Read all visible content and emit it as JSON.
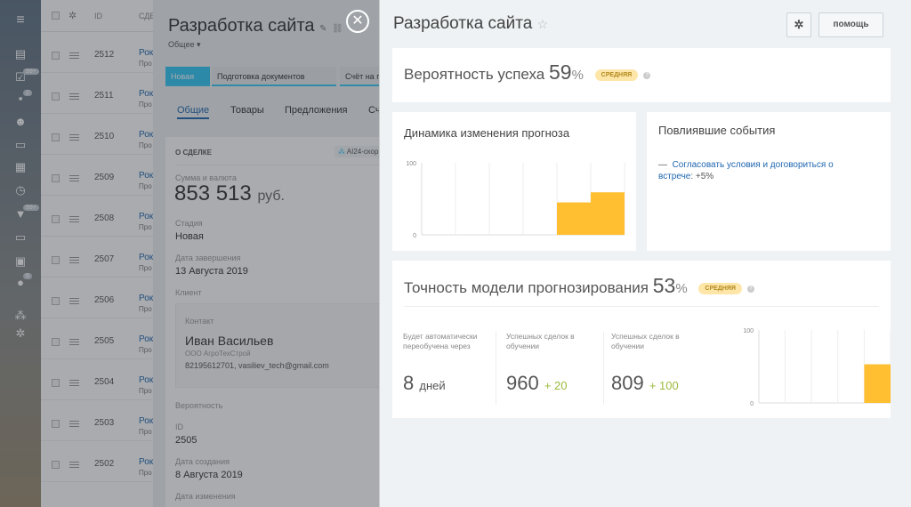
{
  "sidebar": {
    "badges": [
      "99+",
      "2",
      "99+",
      "6"
    ]
  },
  "list": {
    "header": {
      "id": "ID",
      "deal": "СДЕ"
    },
    "rows": [
      {
        "id": "2512",
        "name": "Рок",
        "sub": "Про"
      },
      {
        "id": "2511",
        "name": "Рок",
        "sub": "Про"
      },
      {
        "id": "2510",
        "name": "Рок",
        "sub": "Про"
      },
      {
        "id": "2509",
        "name": "Рок",
        "sub": "Про"
      },
      {
        "id": "2508",
        "name": "Рок",
        "sub": "Про"
      },
      {
        "id": "2507",
        "name": "Рок",
        "sub": "Про"
      },
      {
        "id": "2506",
        "name": "Рок",
        "sub": "Про"
      },
      {
        "id": "2505",
        "name": "Рок",
        "sub": "Про"
      },
      {
        "id": "2504",
        "name": "Рок",
        "sub": "Про"
      },
      {
        "id": "2503",
        "name": "Рок",
        "sub": "Про"
      },
      {
        "id": "2502",
        "name": "Рок",
        "sub": "Про"
      }
    ]
  },
  "deal": {
    "title": "Разработка сайта",
    "category": "Общее",
    "stages": [
      "Новая",
      "Подготовка документов",
      "Счёт на п"
    ],
    "tabs": [
      "Общие",
      "Товары",
      "Предложения",
      "Сч"
    ],
    "section": "О СДЕЛКЕ",
    "ai_button": "AI24-скор",
    "amount_label": "Сумма и валюта",
    "amount": "853 513",
    "currency": "руб.",
    "stage_label": "Стадия",
    "stage": "Новая",
    "close_label": "Дата завершения",
    "close_date": "13 Августа 2019",
    "client_label": "Клиент",
    "contact_label": "Контакт",
    "contact_name": "Иван Васильев",
    "company": "ООО АгроТехСтрой",
    "contacts": "82195612701, vasiliev_tech@gmail.com",
    "probability_label": "Вероятность",
    "id_label": "ID",
    "id": "2505",
    "created_label": "Дата создания",
    "created": "8 Августа 2019",
    "modified_label": "Дата изменения"
  },
  "scoring": {
    "title": "Разработка сайта",
    "help_button": "помощь",
    "success": {
      "label": "Вероятность успеха",
      "value": "59",
      "unit": "%",
      "badge": "СРЕДНЯЯ"
    },
    "dynamics": {
      "title": "Динамика изменения прогноза"
    },
    "events": {
      "title": "Повлиявшие события",
      "items": [
        {
          "link": "Согласовать условия и договориться о встрече",
          "delta": ": +5%"
        }
      ]
    },
    "accuracy": {
      "label": "Точность модели прогнозирования",
      "value": "53",
      "unit": "%",
      "badge": "СРЕДНЯЯ",
      "stats": [
        {
          "label": "Будет автоматически переобучена через",
          "value": "8",
          "suffix": "дней"
        },
        {
          "label": "Успешных сделок в обучении",
          "value": "960",
          "plus": "+ 20"
        },
        {
          "label": "Успешных сделок в обучении",
          "value": "809",
          "plus": "+ 100"
        }
      ]
    }
  },
  "chart_data": [
    {
      "type": "bar",
      "ylim": [
        0,
        100
      ],
      "yticks": [
        "0",
        "100"
      ],
      "values": [
        0,
        0,
        0,
        0,
        45,
        59
      ],
      "color": "#ffbf30",
      "grid": true
    },
    {
      "type": "bar",
      "ylim": [
        0,
        100
      ],
      "yticks": [
        "0",
        "100"
      ],
      "values": [
        0,
        0,
        0,
        0,
        53
      ],
      "color": "#ffbf30",
      "grid": true
    }
  ]
}
